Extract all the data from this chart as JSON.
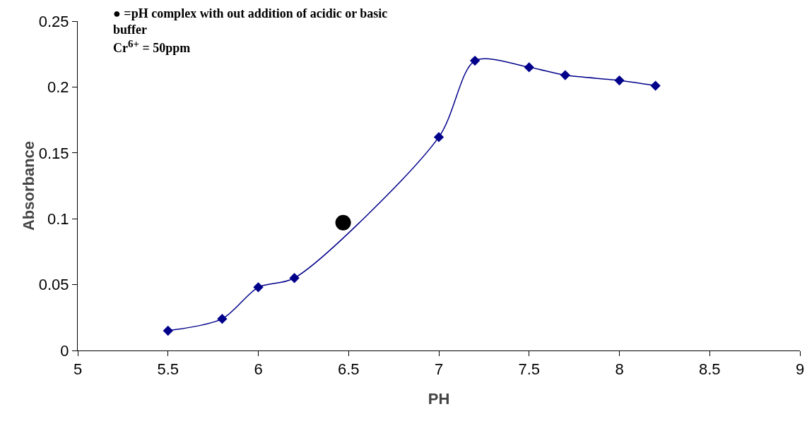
{
  "chart_data": {
    "type": "line",
    "xlabel": "PH",
    "ylabel": "Absorbance",
    "annotations": [
      "● =pH complex with out addition of acidic or basic buffer",
      "Cr$^{6+}$ = 50ppm"
    ],
    "series": [
      {
        "color": "#00008b",
        "marker": "diamond",
        "x": [
          5.5,
          5.8,
          6.0,
          6.2,
          7.0,
          7.2,
          7.5,
          7.7,
          8.0,
          8.2
        ],
        "values": [
          0.015,
          0.024,
          0.048,
          0.055,
          0.162,
          0.22,
          0.215,
          0.209,
          0.205,
          0.201
        ]
      },
      {
        "type": "scatter",
        "color": "#000000",
        "marker": "circle",
        "x": [
          6.47
        ],
        "values": [
          0.097
        ]
      }
    ],
    "xlim": [
      5,
      9
    ],
    "xticks": [
      5,
      5.5,
      6,
      6.5,
      7,
      7.5,
      8,
      8.5,
      9
    ],
    "ylim": [
      0,
      0.25
    ],
    "yticks": [
      0,
      0.05,
      0.1,
      0.15,
      0.2,
      0.25
    ],
    "grid": false
  }
}
